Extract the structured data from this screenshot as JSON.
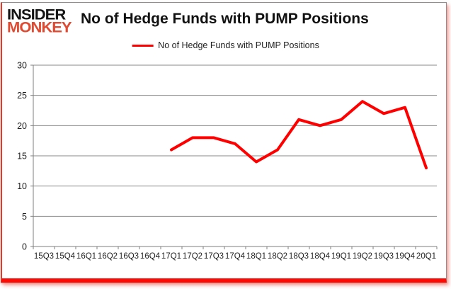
{
  "logo": {
    "line1": "INSIDER",
    "line2": "MONKEY"
  },
  "header": {
    "title": "No of Hedge Funds with PUMP Positions"
  },
  "legend": {
    "label": "No of Hedge Funds with PUMP Positions"
  },
  "colors": {
    "line_red": "#ff0000",
    "logo_red": "#e04a31",
    "logo_black": "#141414",
    "grid_gray": "#8a8a8a",
    "axis_gray": "#7f7f7f",
    "label_text": "#1f1f1f",
    "frame_bottom_red": "#fb0b04"
  },
  "chart_data": {
    "type": "line",
    "title": "No of Hedge Funds with PUMP Positions",
    "xlabel": "",
    "ylabel": "",
    "categories": [
      "15Q3",
      "15Q4",
      "16Q1",
      "16Q2",
      "16Q3",
      "16Q4",
      "17Q1",
      "17Q2",
      "17Q3",
      "17Q4",
      "18Q1",
      "18Q2",
      "18Q3",
      "18Q4",
      "19Q1",
      "19Q2",
      "19Q3",
      "19Q4",
      "20Q1"
    ],
    "series": [
      {
        "name": "No of Hedge Funds with PUMP Positions",
        "values": [
          null,
          null,
          null,
          null,
          null,
          null,
          16,
          18,
          18,
          17,
          14,
          16,
          21,
          20,
          21,
          24,
          22,
          23,
          13
        ]
      }
    ],
    "ylim": [
      0,
      30
    ],
    "ytick_step": 5,
    "yticks": [
      0,
      5,
      10,
      15,
      20,
      25,
      30
    ],
    "grid": true,
    "legend_position": "top-center",
    "line_color": "#ff0000"
  }
}
